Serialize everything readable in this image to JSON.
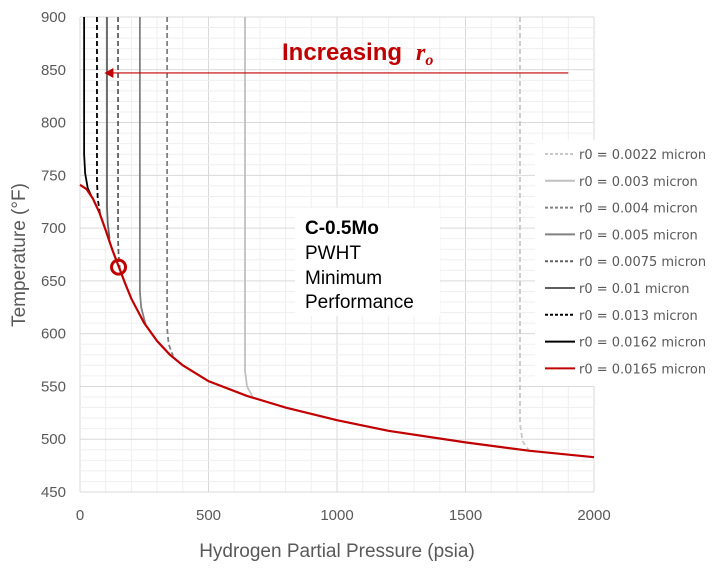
{
  "chart_data": {
    "type": "line",
    "xlabel": "Hydrogen Partial Pressure (psia)",
    "ylabel": "Temperature (°F)",
    "xlim": [
      0,
      2000
    ],
    "ylim": [
      450,
      900
    ],
    "xticks": [
      0,
      500,
      1000,
      1500,
      2000
    ],
    "yticks": [
      450,
      500,
      550,
      600,
      650,
      700,
      750,
      800,
      850,
      900
    ],
    "grid": true,
    "legend_position": "right",
    "series": [
      {
        "name": "r0 = 0.0022 micron",
        "color": "#c8c8c8",
        "dashed": true,
        "points": [
          [
            1712,
            900
          ],
          [
            1712,
            515
          ],
          [
            1722,
            498
          ],
          [
            1745,
            490
          ]
        ]
      },
      {
        "name": "r0 = 0.003 micron",
        "color": "#c0c0c0",
        "dashed": false,
        "points": [
          [
            642,
            900
          ],
          [
            642,
            565
          ],
          [
            650,
            550
          ],
          [
            672,
            540
          ]
        ]
      },
      {
        "name": "r0 = 0.004 micron",
        "color": "#808080",
        "dashed": true,
        "points": [
          [
            339,
            900
          ],
          [
            339,
            605
          ],
          [
            345,
            590
          ],
          [
            362,
            579
          ]
        ]
      },
      {
        "name": "r0 = 0.005 micron",
        "color": "#808080",
        "dashed": false,
        "points": [
          [
            233,
            900
          ],
          [
            233,
            640
          ],
          [
            238,
            625
          ],
          [
            255,
            609
          ]
        ]
      },
      {
        "name": "r0 = 0.0075 micron",
        "color": "#606060",
        "dashed": true,
        "points": [
          [
            148,
            900
          ],
          [
            148,
            690
          ],
          [
            150,
            675
          ],
          [
            155,
            661
          ]
        ]
      },
      {
        "name": "r0 = 0.01 micron",
        "color": "#606060",
        "dashed": false,
        "points": [
          [
            105,
            900
          ],
          [
            105,
            720
          ],
          [
            108,
            704
          ],
          [
            115,
            690
          ]
        ]
      },
      {
        "name": "r0 = 0.013 micron",
        "color": "#000000",
        "dashed": true,
        "points": [
          [
            66,
            900
          ],
          [
            66,
            745
          ],
          [
            69,
            728
          ],
          [
            78,
            713
          ]
        ]
      },
      {
        "name": "r0 = 0.0162 micron",
        "color": "#000000",
        "dashed": false,
        "points": [
          [
            16,
            900
          ],
          [
            16,
            770
          ],
          [
            20,
            752
          ],
          [
            30,
            738
          ],
          [
            45,
            730
          ]
        ]
      },
      {
        "name": "r0 = 0.0165 micron",
        "color": "#c00000",
        "dashed": false,
        "points": [
          [
            0,
            741
          ],
          [
            25,
            737
          ],
          [
            50,
            728
          ],
          [
            75,
            715
          ],
          [
            100,
            698
          ],
          [
            125,
            680
          ],
          [
            150,
            664
          ],
          [
            175,
            648
          ],
          [
            200,
            633
          ],
          [
            250,
            610
          ],
          [
            300,
            593
          ],
          [
            350,
            580
          ],
          [
            400,
            570
          ],
          [
            500,
            555
          ],
          [
            650,
            541
          ],
          [
            800,
            530
          ],
          [
            1000,
            518
          ],
          [
            1200,
            508
          ],
          [
            1500,
            497
          ],
          [
            1750,
            489
          ],
          [
            2000,
            483
          ]
        ]
      }
    ],
    "annotations": {
      "arrow_label": "Increasing",
      "arrow_label_var": "r",
      "arrow_label_sub": "o",
      "arrow": {
        "from": [
          1900,
          847
        ],
        "to": [
          95,
          847
        ],
        "color": "#c00000"
      },
      "marker_circle": {
        "at": [
          150,
          663
        ],
        "color": "#c00000"
      },
      "material_lines": [
        "C-0.5Mo",
        "PWHT",
        "Minimum",
        "Performance"
      ]
    }
  }
}
